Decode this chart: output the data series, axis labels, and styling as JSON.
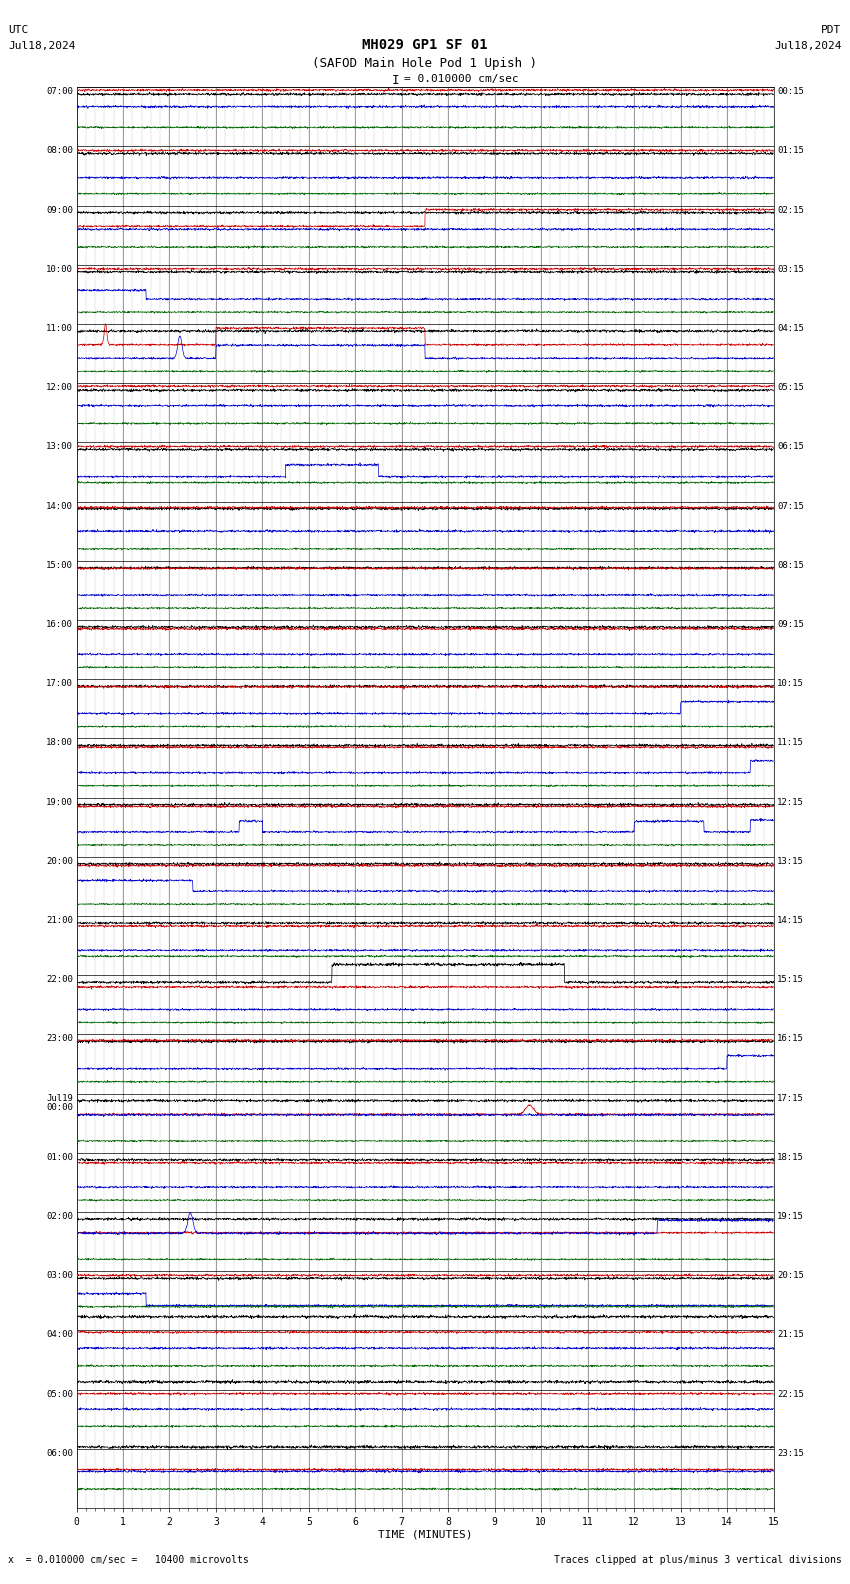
{
  "title_line1": "MH029 GP1 SF 01",
  "title_line2": "(SAFOD Main Hole Pod 1 Upish )",
  "scale_label": "= 0.010000 cm/sec",
  "utc_label": "UTC",
  "pdt_label": "PDT",
  "date_left": "Jul18,2024",
  "date_right": "Jul18,2024",
  "xlabel": "TIME (MINUTES)",
  "footer_left": "x  = 0.010000 cm/sec =   10400 microvolts",
  "footer_right": "Traces clipped at plus/minus 3 vertical divisions",
  "bg_color": "#ffffff",
  "grid_color": "#777777",
  "xlim": [
    0,
    15
  ],
  "xticks": [
    0,
    1,
    2,
    3,
    4,
    5,
    6,
    7,
    8,
    9,
    10,
    11,
    12,
    13,
    14,
    15
  ],
  "figsize": [
    8.5,
    15.84
  ],
  "dpi": 100,
  "num_rows": 24,
  "row_labels_left": [
    "07:00",
    "08:00",
    "09:00",
    "10:00",
    "11:00",
    "12:00",
    "13:00",
    "14:00",
    "15:00",
    "16:00",
    "17:00",
    "18:00",
    "19:00",
    "20:00",
    "21:00",
    "22:00",
    "23:00",
    "Jul19\n00:00",
    "01:00",
    "02:00",
    "03:00",
    "04:00",
    "05:00",
    "06:00"
  ],
  "row_labels_right": [
    "00:15",
    "01:15",
    "02:15",
    "03:15",
    "04:15",
    "05:15",
    "06:15",
    "07:15",
    "08:15",
    "09:15",
    "10:15",
    "11:15",
    "12:15",
    "13:15",
    "14:15",
    "15:15",
    "16:15",
    "17:15",
    "18:15",
    "19:15",
    "20:15",
    "21:15",
    "22:15",
    "23:15"
  ],
  "num_channels": 4,
  "channel_colors": [
    "#000000",
    "#cc0000",
    "#0000cc",
    "#006600"
  ],
  "noise_seed": 42,
  "num_points": 2000,
  "noise_amplitudes": [
    0.04,
    0.03,
    0.03,
    0.025
  ]
}
